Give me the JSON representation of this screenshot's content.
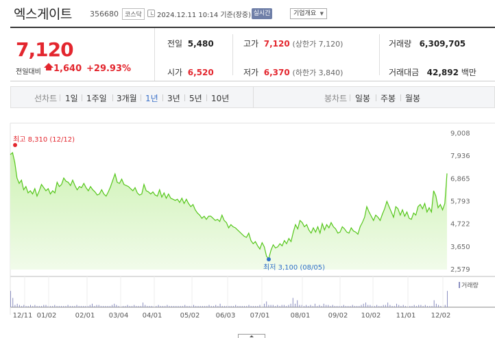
{
  "header": {
    "company_name": "엑스게이트",
    "code": "356680",
    "market": "코스닥",
    "datetime": "2024.12.11 10:14 기준(장중)",
    "realtime_label": "실시간",
    "company_info_label": "기업개요"
  },
  "quote": {
    "price": "7,120",
    "change_label": "전일대비",
    "change": "1,640",
    "change_pct": "+29.93%",
    "prev_close_label": "전일",
    "prev_close": "5,480",
    "open_label": "시가",
    "open": "6,520",
    "high_label": "고가",
    "high": "7,120",
    "upper_limit": "(상한가 7,120)",
    "low_label": "저가",
    "low": "6,370",
    "lower_limit": "(하한가 3,840)",
    "volume_label": "거래량",
    "volume": "6,309,705",
    "amount_label": "거래대금",
    "amount": "42,892",
    "amount_unit": "백만"
  },
  "periods": {
    "label": "선차트",
    "items": [
      "1일",
      "1주일",
      "3개월",
      "1년",
      "3년",
      "5년",
      "10년"
    ],
    "active": "1년"
  },
  "candles": {
    "label": "봉차트",
    "items": [
      "일봉",
      "주봉",
      "월봉"
    ]
  },
  "colors": {
    "up": "#e3262e",
    "line": "#54c619",
    "fill": "#d8f5c4",
    "low_marker": "#2f6fc8",
    "volume": "#8a8ec0"
  },
  "volume_legend": "거래량",
  "chart_data": {
    "type": "area",
    "y_ticks": [
      "9,008",
      "7,936",
      "6,865",
      "5,793",
      "4,722",
      "3,650",
      "2,579"
    ],
    "ylim": [
      2579,
      9008
    ],
    "x_ticks": [
      "12/11",
      "01/02",
      "02/01",
      "03/04",
      "04/01",
      "05/02",
      "06/03",
      "07/01",
      "08/01",
      "09/02",
      "10/02",
      "11/01",
      "12/02"
    ],
    "max_annotation": "최고 8,310 (12/12)",
    "min_annotation": "최저 3,100 (08/05)",
    "values": [
      8010,
      8100,
      7650,
      6900,
      6650,
      6800,
      6350,
      6500,
      6200,
      6300,
      6150,
      6400,
      6050,
      6300,
      6600,
      6450,
      6300,
      6400,
      6150,
      6300,
      6200,
      6700,
      6500,
      6600,
      6900,
      6750,
      6700,
      6550,
      6800,
      6550,
      6350,
      6500,
      6450,
      6650,
      6450,
      6300,
      6500,
      6350,
      6250,
      6100,
      6150,
      6350,
      6150,
      6050,
      6250,
      6500,
      6800,
      7100,
      6700,
      6650,
      6850,
      6600,
      6550,
      6500,
      6400,
      6300,
      6450,
      6200,
      6100,
      6150,
      6600,
      6300,
      6250,
      6150,
      6250,
      6100,
      6050,
      6350,
      6000,
      6200,
      5950,
      6150,
      5950,
      5900,
      5850,
      5900,
      5750,
      5950,
      5700,
      5900,
      5700,
      5550,
      5650,
      5400,
      5250,
      5150,
      5000,
      5100,
      4950,
      5100,
      5100,
      5000,
      4900,
      4950,
      4850,
      5150,
      4900,
      4800,
      4550,
      4700,
      4600,
      4550,
      4450,
      4350,
      4250,
      4150,
      4100,
      4300,
      3950,
      3800,
      3900,
      3700,
      3550,
      3850,
      3650,
      3200,
      3100,
      3500,
      3750,
      3600,
      3650,
      3800,
      3700,
      3950,
      3800,
      4050,
      3900,
      4350,
      4700,
      4500,
      4900,
      4800,
      4600,
      4700,
      4450,
      4300,
      4550,
      4350,
      4600,
      4300,
      4750,
      4450,
      4700,
      4550,
      4800,
      4600,
      4500,
      4300,
      4350,
      4600,
      4500,
      4350,
      4300,
      4550,
      4400,
      4350,
      4250,
      4600,
      4800,
      5050,
      5550,
      5300,
      5100,
      4900,
      5150,
      5050,
      4900,
      5200,
      5450,
      5800,
      5550,
      5300,
      5050,
      5550,
      5450,
      5150,
      5400,
      5100,
      5300,
      5000,
      4950,
      5250,
      5150,
      5550,
      5650,
      5450,
      5700,
      5300,
      5500,
      5300,
      6300,
      6050,
      5500,
      5650,
      5400,
      5700,
      7120
    ]
  },
  "volume_data": [
    14,
    8,
    2,
    3,
    2,
    1,
    2,
    1,
    1,
    2,
    1,
    2,
    1,
    1,
    1,
    2,
    2,
    1,
    1,
    1,
    2,
    1,
    1,
    1,
    1,
    1,
    2,
    1,
    1,
    1,
    2,
    1,
    1,
    1,
    1,
    1,
    2,
    3,
    1,
    2,
    2,
    1,
    1,
    1,
    1,
    1,
    2,
    3,
    2,
    1,
    1,
    1,
    1,
    2,
    1,
    1,
    2,
    1,
    1,
    1,
    4,
    2,
    1,
    1,
    1,
    1,
    1,
    2,
    1,
    1,
    1,
    2,
    1,
    1,
    1,
    1,
    1,
    1,
    1,
    2,
    1,
    1,
    1,
    2,
    1,
    1,
    1,
    1,
    1,
    1,
    2,
    1,
    1,
    2,
    1,
    3,
    1,
    1,
    1,
    1,
    1,
    1,
    2,
    1,
    1,
    1,
    1,
    1,
    2,
    1,
    1,
    1,
    1,
    2,
    1,
    3,
    5,
    2,
    2,
    2,
    1,
    2,
    1,
    2,
    2,
    1,
    2,
    3,
    8,
    3,
    6,
    2,
    2,
    1,
    2,
    1,
    2,
    1,
    3,
    1,
    2,
    1,
    3,
    2,
    2,
    1,
    2,
    1,
    1,
    1,
    1,
    2,
    1,
    1,
    1,
    2,
    1,
    1,
    1,
    2,
    3,
    4,
    2,
    2,
    1,
    1,
    2,
    1,
    1,
    2,
    2,
    4,
    2,
    1,
    1,
    3,
    2,
    1,
    2,
    1,
    1,
    1,
    1,
    2,
    1,
    2,
    2,
    1,
    2,
    1,
    1,
    1,
    6,
    3,
    2,
    1,
    2,
    2,
    14
  ]
}
